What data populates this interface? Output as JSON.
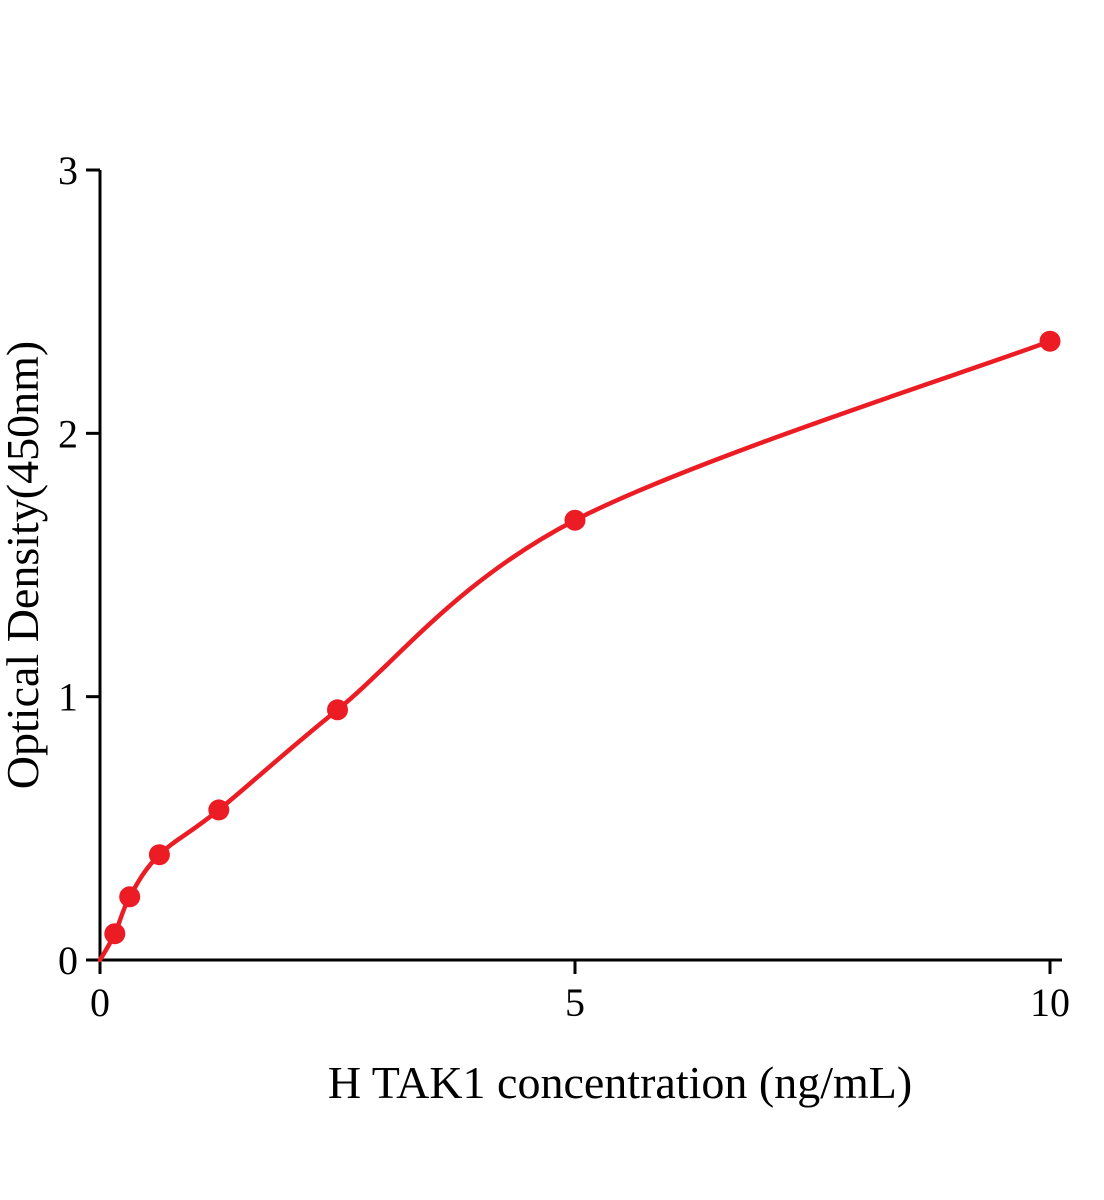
{
  "chart_data": {
    "type": "scatter",
    "title": "",
    "xlabel": "H TAK1 concentration (ng/mL)",
    "ylabel": "Optical Density(450nm)",
    "x": [
      0.156,
      0.313,
      0.625,
      1.25,
      2.5,
      5,
      10
    ],
    "y": [
      0.1,
      0.24,
      0.4,
      0.57,
      0.95,
      1.67,
      2.35
    ],
    "curve_start": {
      "x": 0,
      "y": 0
    },
    "xticks": [
      0,
      5,
      10
    ],
    "yticks": [
      0,
      1,
      2,
      3
    ],
    "xlim": [
      0,
      10
    ],
    "ylim": [
      0,
      3
    ],
    "grid": false,
    "legend": false,
    "point_color": "#ec1c24",
    "curve_color": "#ec1c24",
    "axis_color": "#000000"
  }
}
